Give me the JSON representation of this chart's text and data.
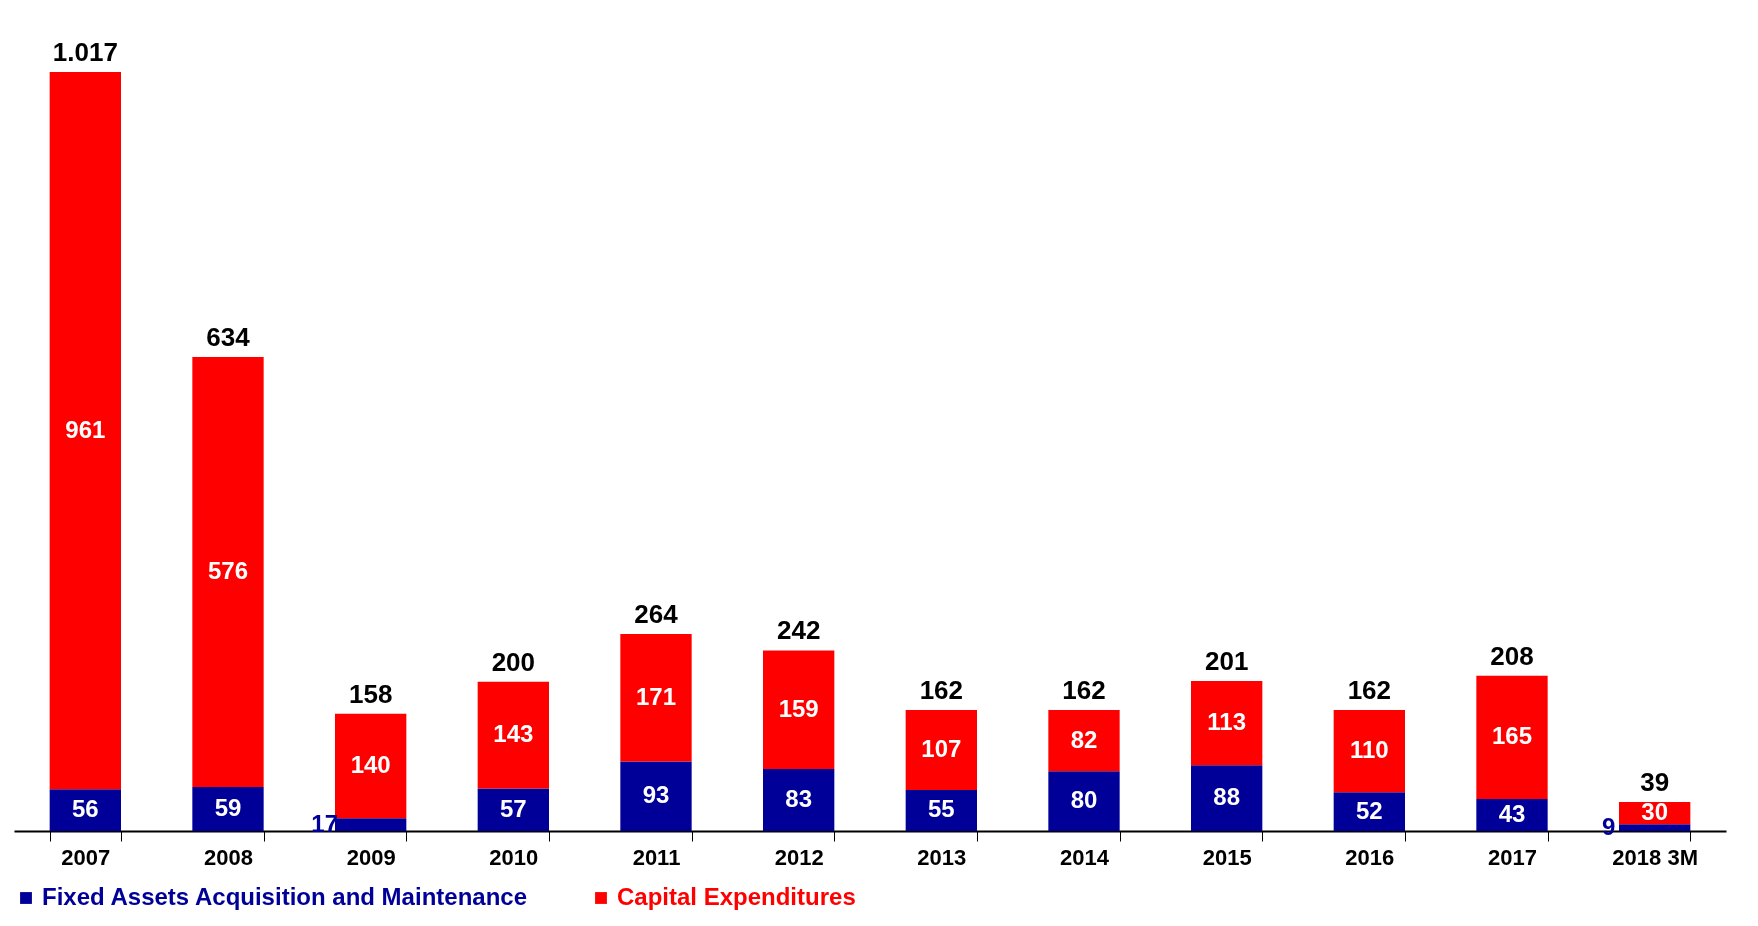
{
  "chart_data": {
    "type": "bar",
    "stacked": true,
    "data_labels": true,
    "legend": "bottom",
    "categories": [
      "2007",
      "2008",
      "2009",
      "2010",
      "2011",
      "2012",
      "2013",
      "2014",
      "2015",
      "2016",
      "2017",
      "2018 3M"
    ],
    "series": [
      {
        "name": "Fixed Assets Acquisition and Maintenance",
        "color": "#000099",
        "values": [
          56,
          59,
          17,
          57,
          93,
          83,
          55,
          80,
          88,
          52,
          43,
          9
        ]
      },
      {
        "name": "Capital Expenditures",
        "color": "#ff0000",
        "values": [
          961,
          576,
          140,
          143,
          171,
          159,
          107,
          82,
          113,
          110,
          165,
          30
        ]
      }
    ],
    "totals": [
      "1.017",
      "634",
      "158",
      "200",
      "264",
      "242",
      "162",
      "162",
      "201",
      "162",
      "208",
      "39"
    ]
  }
}
